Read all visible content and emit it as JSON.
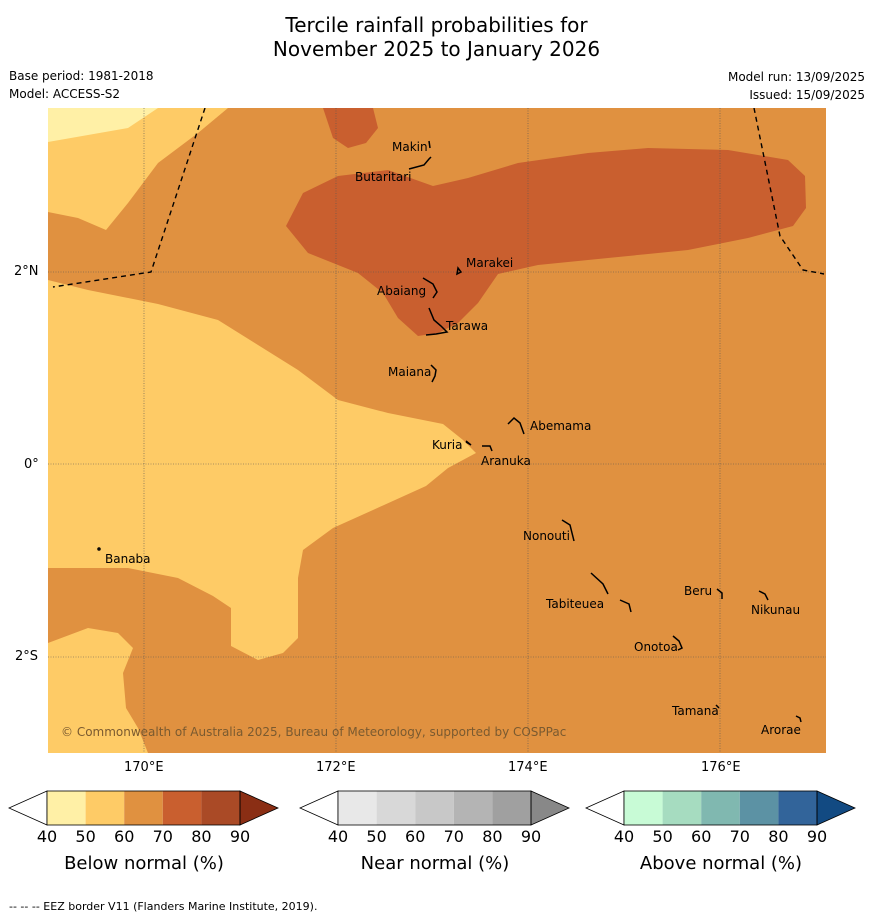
{
  "title_line1": "Tercile rainfall probabilities for",
  "title_line2": "November 2025 to January 2026",
  "base_period": "Base period: 1981-2018",
  "model": "Model: ACCESS-S2",
  "model_run": "Model run: 13/09/2025",
  "issued": "Issued: 15/09/2025",
  "copyright": "© Commonwealth of Australia 2025, Bureau of Meteorology, supported by COSPPac",
  "footnote": "--  --  -- EEZ border V11 (Flanders Marine Institute, 2019).",
  "lat_ticks": [
    "2°N",
    "0°",
    "2°S"
  ],
  "lon_ticks": [
    "170°E",
    "172°E",
    "174°E",
    "176°E"
  ],
  "places": [
    {
      "name": "Makin"
    },
    {
      "name": "Butaritari"
    },
    {
      "name": "Marakei"
    },
    {
      "name": "Abaiang"
    },
    {
      "name": "Tarawa"
    },
    {
      "name": "Maiana"
    },
    {
      "name": "Abemama"
    },
    {
      "name": "Kuria"
    },
    {
      "name": "Aranuka"
    },
    {
      "name": "Banaba"
    },
    {
      "name": "Nonouti"
    },
    {
      "name": "Beru"
    },
    {
      "name": "Tabiteuea"
    },
    {
      "name": "Nikunau"
    },
    {
      "name": "Onotoa"
    },
    {
      "name": "Tamana"
    },
    {
      "name": "Arorae"
    }
  ],
  "colorbars": [
    {
      "title": "Below normal (%)",
      "labels": [
        "40",
        "50",
        "60",
        "70",
        "80",
        "90"
      ],
      "colors": [
        "#ffffff",
        "#fff0a6",
        "#fecb66",
        "#e09140",
        "#c95f2f",
        "#aa4a26",
        "#8a2e14"
      ]
    },
    {
      "title": "Near normal (%)",
      "labels": [
        "40",
        "50",
        "60",
        "70",
        "80",
        "90"
      ],
      "colors": [
        "#ffffff",
        "#e8e8e8",
        "#d8d8d8",
        "#c8c8c8",
        "#b4b4b4",
        "#a0a0a0",
        "#888888"
      ]
    },
    {
      "title": "Above normal (%)",
      "labels": [
        "40",
        "50",
        "60",
        "70",
        "80",
        "90"
      ],
      "colors": [
        "#ffffff",
        "#c8fbd6",
        "#a6dcc0",
        "#80b8b0",
        "#5c92a4",
        "#32649a",
        "#124a82"
      ]
    }
  ],
  "map_colors": {
    "below_50_60": "#fecb66",
    "below_40_50": "#fff0a6",
    "below_60_70": "#e09140",
    "below_70_80": "#c95f2f"
  }
}
